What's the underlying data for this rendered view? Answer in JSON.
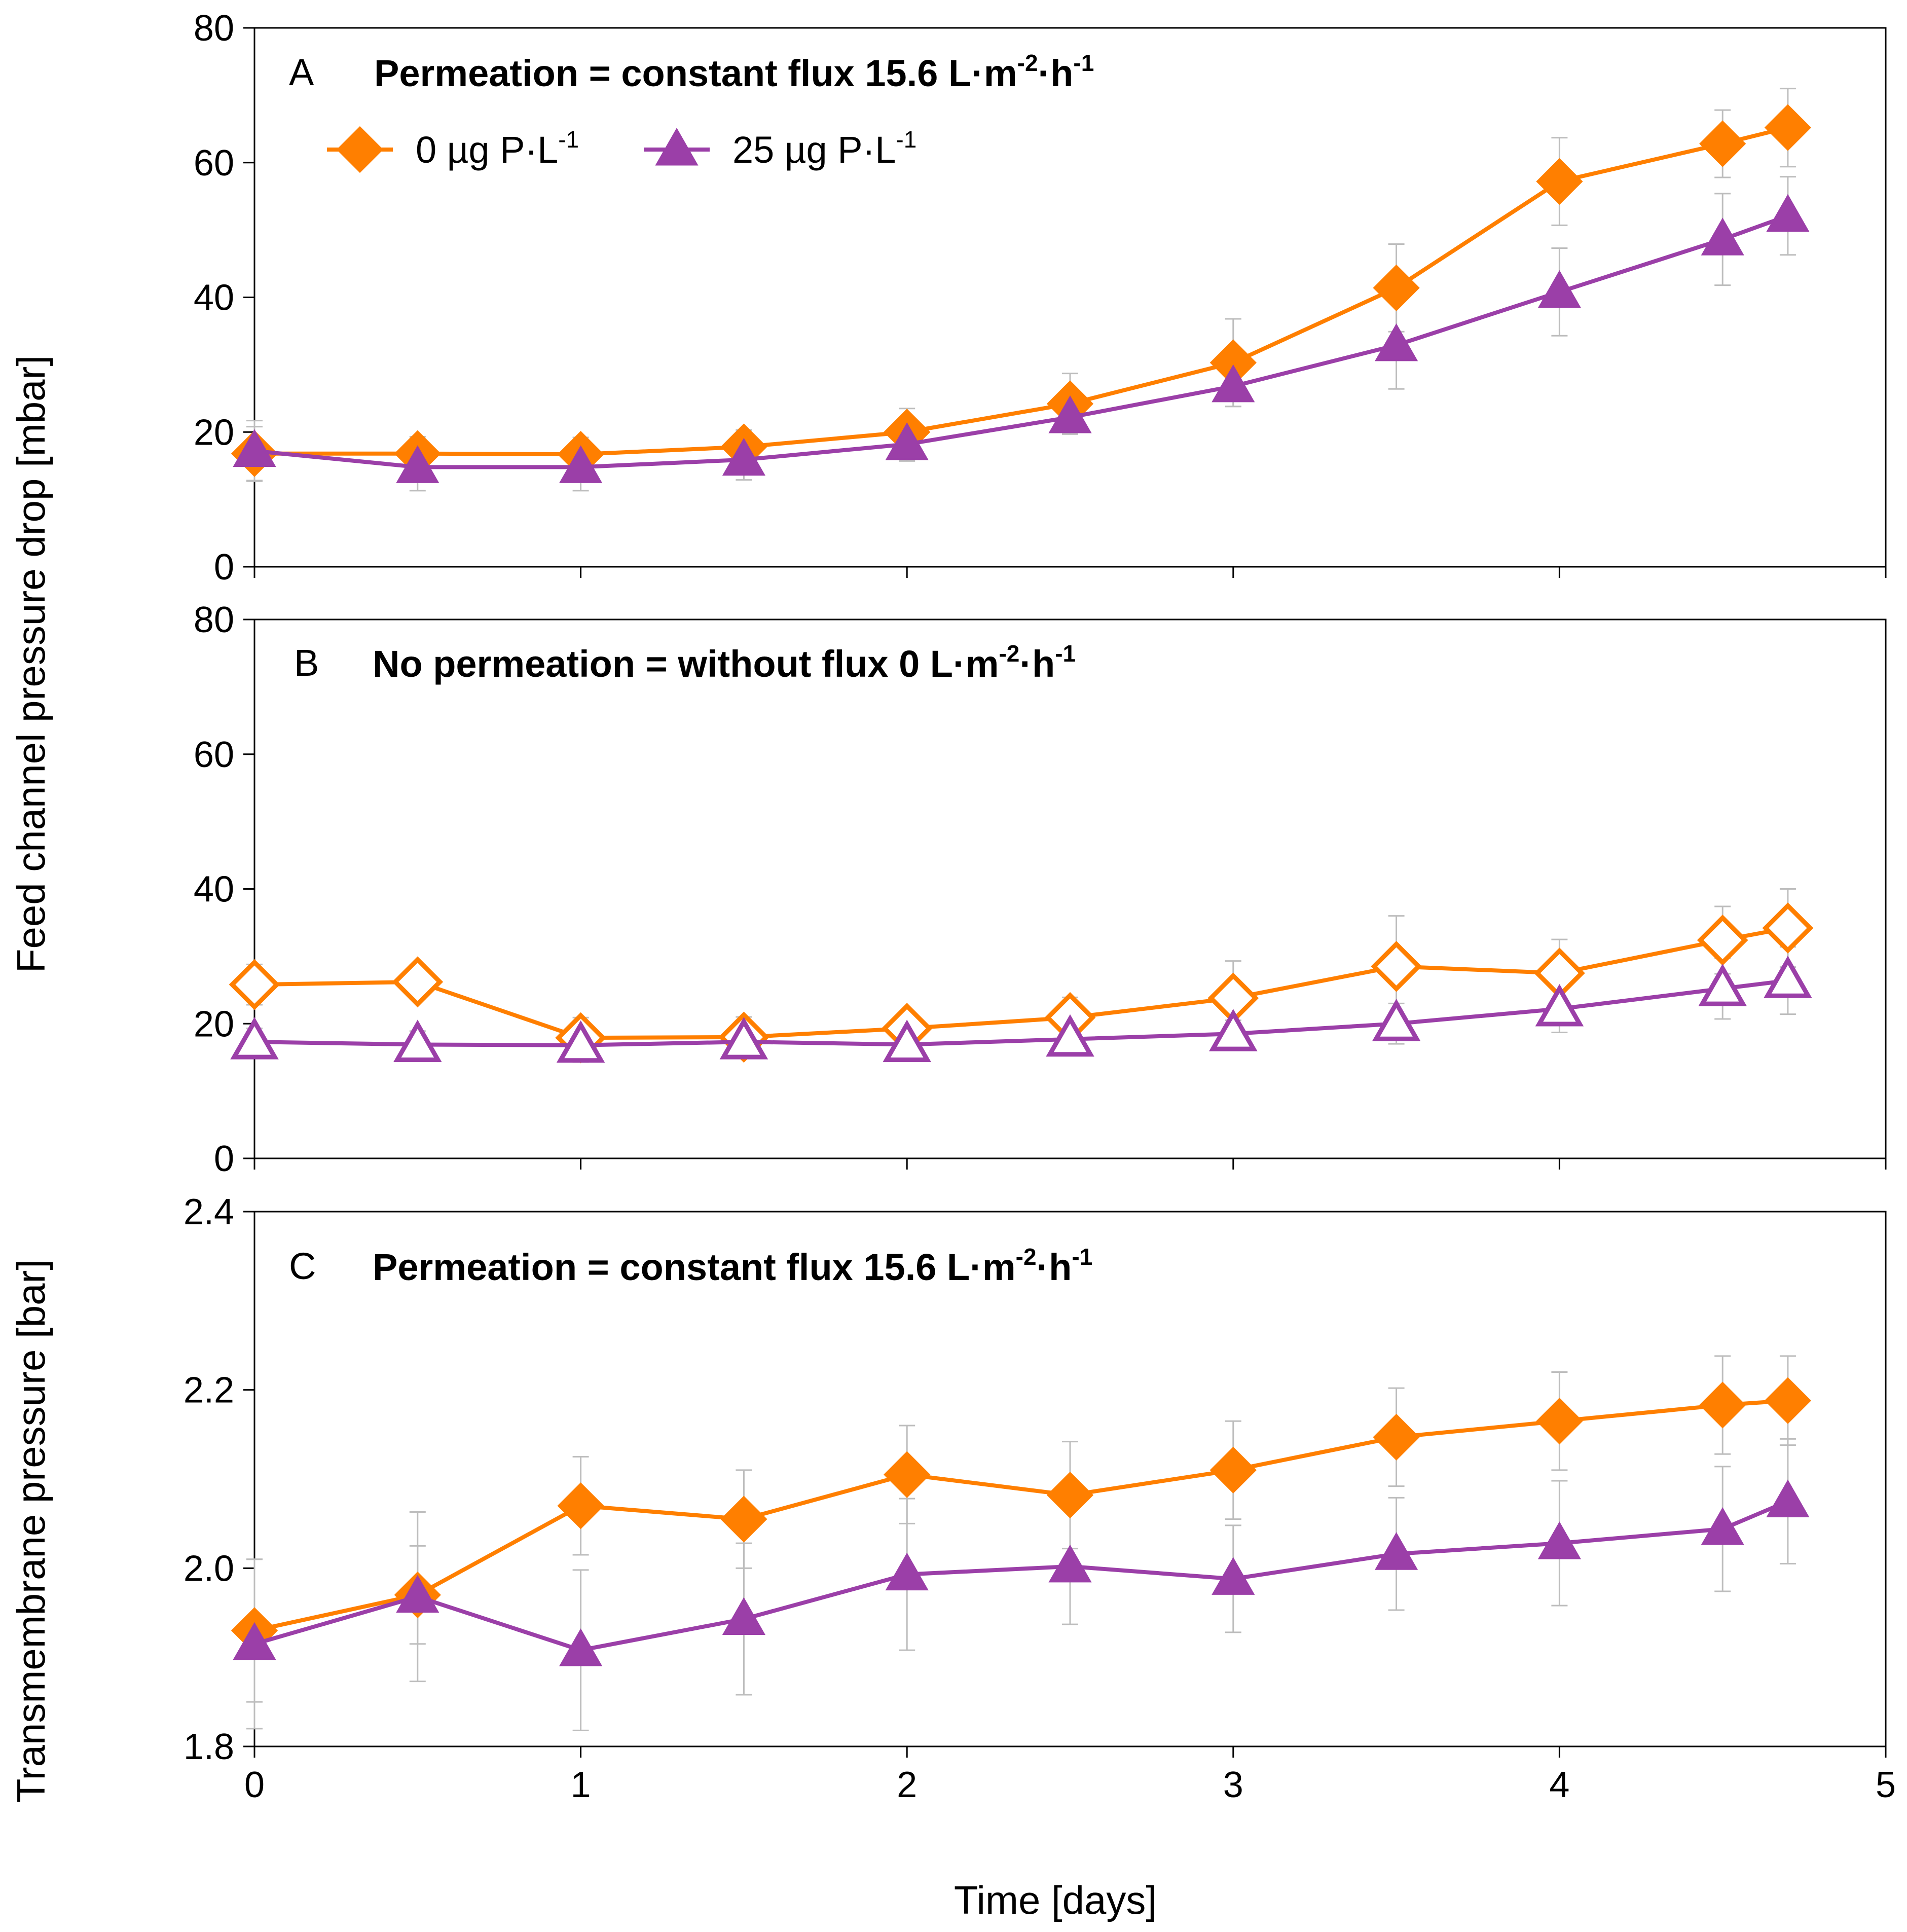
{
  "colors": {
    "orange": "#ff7f00",
    "purple": "#9b3fa8",
    "errorbar": "#bdbdbd",
    "axis": "#000000"
  },
  "legend": [
    {
      "label": "0 µg P·L",
      "sup": "-1",
      "marker": "diamond-filled",
      "color": "#ff7f00"
    },
    {
      "label": "25 µg P·L",
      "sup": "-1",
      "marker": "triangle-filled",
      "color": "#9b3fa8"
    }
  ],
  "axes": {
    "xlabel": "Time [days]",
    "ylabel_top": "Feed channel pressure drop [mbar]",
    "ylabel_bottom": "Transmembrane pressure [bar]"
  },
  "chart_data": [
    {
      "panel": "A",
      "type": "line",
      "title": "Permeation = constant flux 15.6 L·m",
      "title_sup1": "-2",
      "title_mid": "·h",
      "title_sup2": "-1",
      "xlim": [
        0,
        5
      ],
      "ylim": [
        0,
        80
      ],
      "xticks": [
        "0",
        "1",
        "2",
        "3",
        "4",
        "5"
      ],
      "yticks": [
        "0",
        "20",
        "40",
        "60",
        "80"
      ],
      "show_xticklabels": false,
      "x": [
        0,
        0.5,
        1,
        1.5,
        2,
        2.5,
        3,
        3.5,
        4,
        4.5,
        4.7
      ],
      "series": [
        {
          "name": "0 µg P·L-1",
          "marker": "diamond-filled",
          "color": "#ff7f00",
          "values": [
            16.8,
            16.8,
            16.7,
            17.8,
            20.0,
            24.2,
            30.3,
            41.4,
            57.2,
            62.8,
            65.2
          ],
          "errors": [
            4.0,
            2.5,
            2.5,
            2.5,
            3.5,
            4.5,
            6.5,
            6.5,
            6.5,
            5.0,
            5.8
          ]
        },
        {
          "name": "25 µg P·L-1",
          "marker": "triangle-filled",
          "color": "#9b3fa8",
          "values": [
            17.2,
            14.8,
            14.8,
            15.9,
            18.2,
            22.2,
            26.8,
            32.9,
            40.8,
            48.6,
            52.1
          ],
          "errors": [
            4.5,
            3.5,
            3.5,
            3.0,
            2.5,
            2.5,
            3.0,
            6.5,
            6.5,
            6.8,
            5.8
          ]
        }
      ]
    },
    {
      "panel": "B",
      "type": "line",
      "title": "No permeation = without flux 0 L·m",
      "title_sup1": "-2",
      "title_mid": "·h",
      "title_sup2": "-1",
      "xlim": [
        0,
        5
      ],
      "ylim": [
        0,
        80
      ],
      "xticks": [
        "0",
        "1",
        "2",
        "3",
        "4",
        "5"
      ],
      "yticks": [
        "0",
        "20",
        "40",
        "60",
        "80"
      ],
      "show_xticklabels": false,
      "x": [
        0,
        0.5,
        1,
        1.5,
        2,
        2.5,
        3,
        3.5,
        4,
        4.5,
        4.7
      ],
      "series": [
        {
          "name": "0 µg P·L-1",
          "marker": "diamond-open",
          "color": "#ff7f00",
          "values": [
            25.8,
            26.2,
            17.9,
            18.0,
            19.3,
            20.9,
            23.8,
            28.5,
            27.5,
            32.4,
            34.2
          ],
          "errors": [
            3.0,
            2.5,
            3.0,
            3.0,
            2.5,
            3.0,
            5.5,
            7.5,
            5.0,
            5.0,
            5.8
          ]
        },
        {
          "name": "25 µg P·L-1",
          "marker": "triangle-open",
          "color": "#9b3fa8",
          "values": [
            17.3,
            16.9,
            16.8,
            17.3,
            16.9,
            17.7,
            18.5,
            20.0,
            22.2,
            25.2,
            26.4
          ],
          "errors": [
            2.0,
            2.0,
            2.5,
            2.0,
            2.0,
            1.8,
            2.0,
            3.0,
            3.5,
            4.5,
            5.0
          ]
        }
      ]
    },
    {
      "panel": "C",
      "type": "line",
      "title": "Permeation = constant flux 15.6 L·m",
      "title_sup1": "-2",
      "title_mid": "·h",
      "title_sup2": "-1",
      "xlim": [
        0,
        5
      ],
      "ylim": [
        1.8,
        2.4
      ],
      "xticks": [
        "0",
        "1",
        "2",
        "3",
        "4",
        "5"
      ],
      "yticks": [
        "1.8",
        "2.0",
        "2.2",
        "2.4"
      ],
      "show_xticklabels": true,
      "x": [
        0,
        0.5,
        1,
        1.5,
        2,
        2.5,
        3,
        3.5,
        4,
        4.5,
        4.7
      ],
      "series": [
        {
          "name": "0 µg P·L-1",
          "marker": "diamond-filled",
          "color": "#ff7f00",
          "values": [
            1.93,
            1.97,
            2.07,
            2.055,
            2.105,
            2.082,
            2.11,
            2.147,
            2.165,
            2.183,
            2.188
          ],
          "errors": [
            0.08,
            0.055,
            0.055,
            0.055,
            0.055,
            0.06,
            0.055,
            0.055,
            0.055,
            0.055,
            0.05
          ]
        },
        {
          "name": "25 µg P·L-1",
          "marker": "triangle-filled",
          "color": "#9b3fa8",
          "values": [
            1.915,
            1.968,
            1.908,
            1.943,
            1.993,
            2.002,
            1.988,
            2.016,
            2.028,
            2.044,
            2.075
          ],
          "errors": [
            0.095,
            0.095,
            0.09,
            0.085,
            0.085,
            0.065,
            0.06,
            0.063,
            0.07,
            0.07,
            0.07
          ]
        }
      ]
    }
  ]
}
